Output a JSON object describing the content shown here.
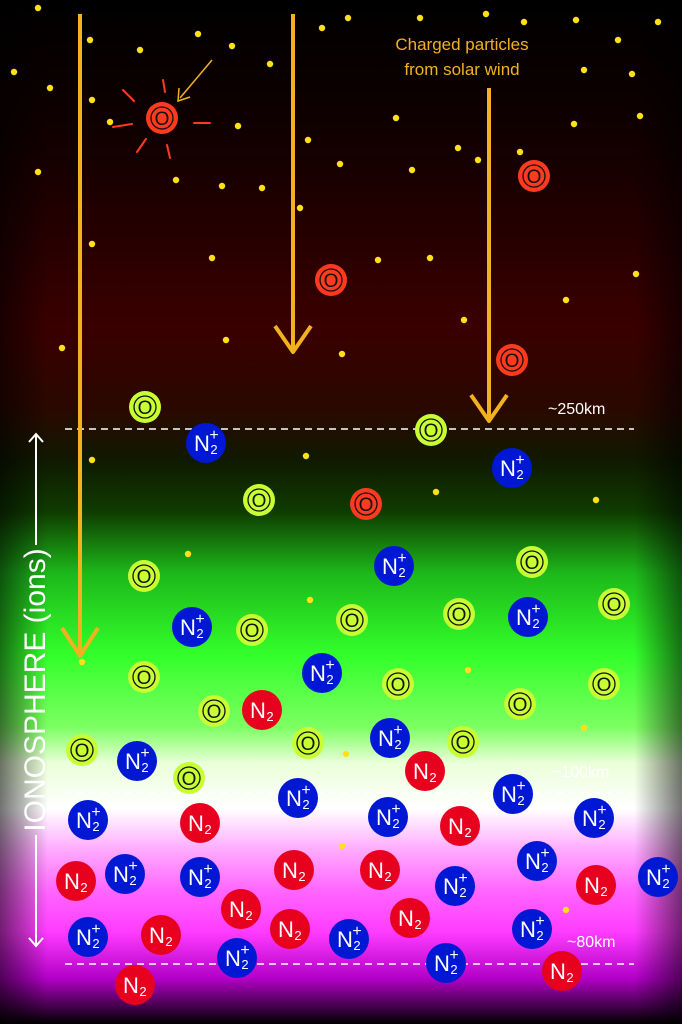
{
  "caption": {
    "line1": "Charged particles",
    "line2": "from solar wind",
    "color": "#f2b21f"
  },
  "altitudes": {
    "a250": "~250km",
    "a100": "~100km",
    "a80": "~80km"
  },
  "ionosphere_label": "IONOSPHERE (ions)",
  "species": {
    "O": {
      "text": "O"
    },
    "N2": {
      "text": "N",
      "sub": "2"
    },
    "N2plus": {
      "text": "N",
      "sub": "2",
      "sup": "+"
    }
  },
  "colors": {
    "space_red": "#3a0000",
    "aurora_green": "#33ff2a",
    "aurora_pink": "#ff66ff",
    "aurora_magenta": "#b400c8",
    "oxygen_red": "#ff3a1e",
    "oxygen_green": "#c8ff32",
    "nitrogen_red": "#e8001f",
    "nitrogen_ion_blue": "#0018d4",
    "particle_yellow": "#ffe11a",
    "arrow": "#f2b21f"
  },
  "icons": [
    "sun-icon",
    "solar-wind-arrow",
    "charged-particle-dot"
  ]
}
